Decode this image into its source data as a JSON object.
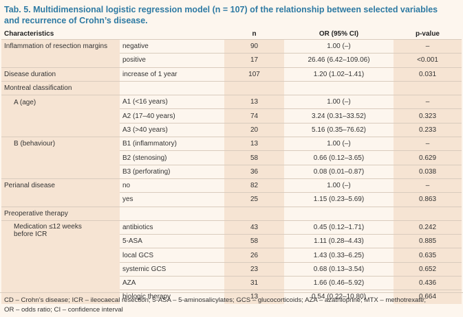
{
  "caption": {
    "line1": "Tab. 5. Multidimensional logistic regression model (n = 107) of the relationship between selected variables",
    "line2": "and recurrence of Crohn’s disease."
  },
  "header": {
    "characteristics": "Characteristics",
    "n": "n",
    "or": "OR (95% CI)",
    "p": "p-value"
  },
  "rows": {
    "infl_label": "Inflammation of resection margins",
    "infl_neg": {
      "sub": "negative",
      "n": "90",
      "or": "1.00 (–)",
      "p": "–"
    },
    "infl_pos": {
      "sub": "positive",
      "n": "17",
      "or": "26.46 (6.42–109.06)",
      "p": "<0.001"
    },
    "dur": {
      "label": "Disease duration",
      "sub": "increase of 1 year",
      "n": "107",
      "or": "1.20 (1.02–1.41)",
      "p": "0.031"
    },
    "montreal_label": "Montreal classification",
    "age_label": "A (age)",
    "a1": {
      "sub": "A1 (<16 years)",
      "n": "13",
      "or": "1.00 (–)",
      "p": "–"
    },
    "a2": {
      "sub": "A2 (17–40 years)",
      "n": "74",
      "or": "3.24 (0.31–33.52)",
      "p": "0.323"
    },
    "a3": {
      "sub": "A3 (>40 years)",
      "n": "20",
      "or": "5.16 (0.35–76.62)",
      "p": "0.233"
    },
    "beh_label": "B (behaviour)",
    "b1": {
      "sub": "B1 (inflammatory)",
      "n": "13",
      "or": "1.00 (–)",
      "p": "–"
    },
    "b2": {
      "sub": "B2 (stenosing)",
      "n": "58",
      "or": "0.66 (0.12–3.65)",
      "p": "0.629"
    },
    "b3": {
      "sub": "B3 (perforating)",
      "n": "36",
      "or": "0.08 (0.01–0.87)",
      "p": "0.038"
    },
    "peri_label": "Perianal disease",
    "peri_no": {
      "sub": "no",
      "n": "82",
      "or": "1.00 (–)",
      "p": "–"
    },
    "peri_yes": {
      "sub": "yes",
      "n": "25",
      "or": "1.15 (0.23–5.69)",
      "p": "0.863"
    },
    "preop_label": "Preoperative therapy",
    "med_label_1": "Medication ≤12 weeks",
    "med_label_2": "before ICR",
    "m1": {
      "sub": "antibiotics",
      "n": "43",
      "or": "0.45 (0.12–1.71)",
      "p": "0.242"
    },
    "m2": {
      "sub": "5-ASA",
      "n": "58",
      "or": "1.11 (0.28–4.43)",
      "p": "0.885"
    },
    "m3": {
      "sub": "local GCS",
      "n": "26",
      "or": "1.43 (0.33–6.25)",
      "p": "0.635"
    },
    "m4": {
      "sub": "systemic GCS",
      "n": "23",
      "or": "0.68 (0.13–3.54)",
      "p": "0.652"
    },
    "m5": {
      "sub": "AZA",
      "n": "31",
      "or": "1.66 (0.46–5.92)",
      "p": "0.436"
    },
    "m6": {
      "sub": "biologic therapy",
      "n": "13",
      "or": "0.54 (0.22–10.80)",
      "p": "0.664"
    }
  },
  "footnote": {
    "line1": "CD – Crohn’s disease; ICR – ileocaecal resection; 5-ASA – 5-aminosalicylates; GCS – glucocorticoids; AZA – azathioprine; MTX – methotrexate;",
    "line2": "OR – odds ratio; CI – confidence interval"
  }
}
